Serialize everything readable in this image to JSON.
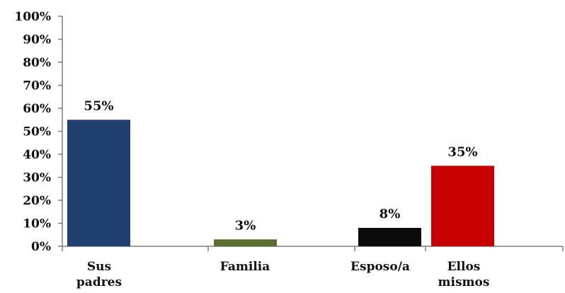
{
  "chart_data": {
    "type": "bar",
    "categories": [
      [
        "Sus",
        "padres"
      ],
      [
        "Familia"
      ],
      [
        "Esposo/a"
      ],
      [
        "Ellos",
        "mismos"
      ]
    ],
    "values": [
      55,
      3,
      8,
      35
    ],
    "data_labels": [
      "55%",
      "3%",
      "8%",
      "35%"
    ],
    "colors": [
      "#1f3f6e",
      "#5a6e2e",
      "#0a0a0a",
      "#c80000"
    ],
    "ylim": [
      0,
      100
    ],
    "yticks": [
      "0%",
      "10%",
      "20%",
      "30%",
      "40%",
      "50%",
      "60%",
      "70%",
      "80%",
      "90%",
      "100%"
    ],
    "grid": false,
    "legend": "none",
    "title": "",
    "xlabel": "",
    "ylabel": ""
  }
}
